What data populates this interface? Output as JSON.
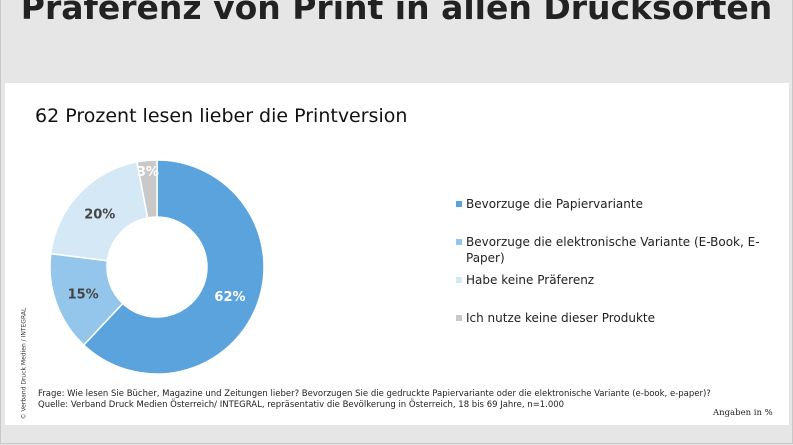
{
  "headline": "Präferenz von Print in allen Drucksorten",
  "credit": "© Verband Druck Medien / INTEGRAL",
  "chart_data": {
    "type": "pie",
    "title": "62 Prozent lesen lieber die Printversion",
    "slices": [
      {
        "label": "Bevorzuge die Papiervariante",
        "value": 62,
        "display": "62%",
        "color": "#5ba3dd"
      },
      {
        "label": "Bevorzuge die elektronische Variante (E-Book, E-Paper)",
        "value": 15,
        "display": "15%",
        "color": "#93c6ea"
      },
      {
        "label": "Habe keine Präferenz",
        "value": 20,
        "display": "20%",
        "color": "#d4e8f6"
      },
      {
        "label": "Ich nutze keine dieser Produkte",
        "value": 3,
        "display": "3%",
        "color": "#c9c9c9"
      }
    ],
    "legend_position": "right"
  },
  "footnote": {
    "question": "Frage: Wie lesen Sie Bücher, Magazine und Zeitungen lieber? Bevorzugen Sie die gedruckte Papiervariante oder die elektronische Variante (e-book, e-paper)?",
    "source": "Quelle: Verband Druck Medien Österreich/ INTEGRAL, repräsentativ die Bevölkerung in Österreich, 18 bis 69 Jahre, n=1.000",
    "unit": "Angaben in %"
  }
}
